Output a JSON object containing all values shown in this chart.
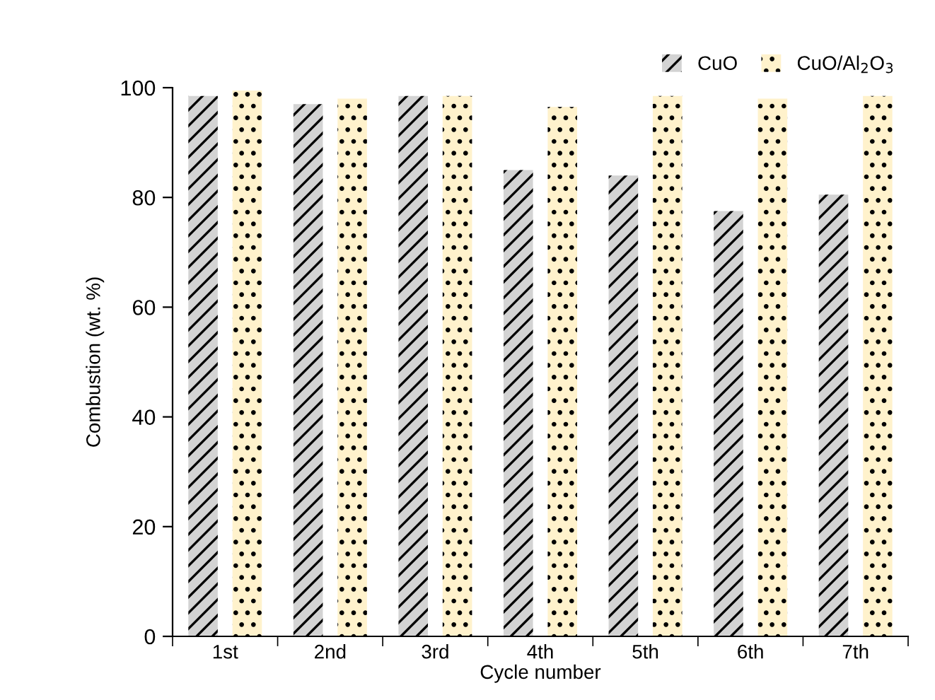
{
  "chart_data": {
    "type": "bar",
    "xlabel": "Cycle number",
    "ylabel": "Combustion (wt. %)",
    "categories": [
      "1st",
      "2nd",
      "3rd",
      "4th",
      "5th",
      "6th",
      "7th"
    ],
    "series": [
      {
        "name": "CuO",
        "color": "#d3d3d3",
        "values": [
          98.5,
          97,
          98.5,
          85,
          84,
          77.5,
          80.5
        ]
      },
      {
        "name": "CuO/Al$_{2}$O$_{3}$",
        "color": "#fff2cc",
        "values": [
          99.5,
          98,
          98.5,
          96.5,
          98.5,
          98,
          98.5
        ]
      }
    ],
    "ylim": [
      0,
      100
    ],
    "yticks": [
      0,
      20,
      40,
      60,
      80,
      100
    ],
    "grid": false,
    "legend": "top right"
  }
}
